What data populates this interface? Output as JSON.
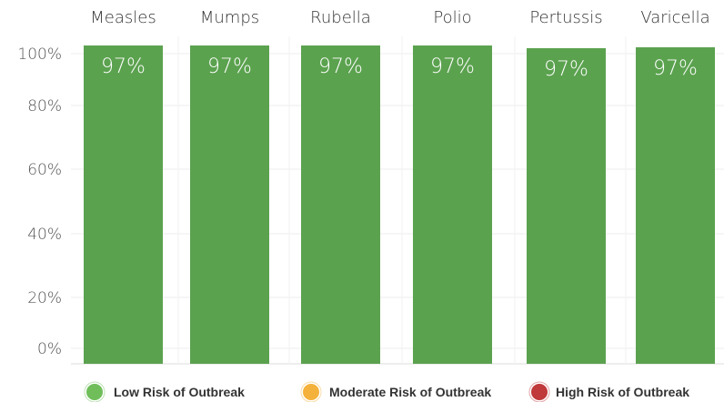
{
  "chart_data": {
    "type": "bar",
    "categories": [
      "Measles",
      "Mumps",
      "Rubella",
      "Polio",
      "Pertussis",
      "Varicella"
    ],
    "values": [
      97,
      97,
      97,
      97,
      97,
      97
    ],
    "data_labels": [
      "97%",
      "97%",
      "97%",
      "97%",
      "97%",
      "97%"
    ],
    "y_ticks": [
      "0%",
      "20%",
      "40%",
      "60%",
      "80%",
      "100%"
    ],
    "ylim": [
      0,
      100
    ],
    "grid": true,
    "colors": {
      "bar": "#5ba24f",
      "low": "#6fbe5a",
      "moderate": "#f4b23c",
      "high": "#c0393b"
    },
    "legend_position": "bottom",
    "legend": [
      {
        "label": "Low Risk of Outbreak",
        "color": "#6fbe5a"
      },
      {
        "label": "Moderate Risk of Outbreak",
        "color": "#f4b23c"
      },
      {
        "label": "High Risk of Outbreak",
        "color": "#c0393b"
      }
    ]
  }
}
